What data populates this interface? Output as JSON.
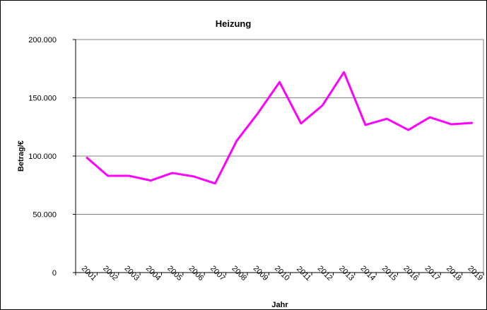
{
  "chart_data": {
    "type": "line",
    "title": "Heizung",
    "y_label": "Betrag/€",
    "x_label": "Jahr",
    "categories": [
      "2001",
      "2002",
      "2003",
      "2004",
      "2005",
      "2006",
      "2007",
      "2008",
      "2009",
      "2010",
      "2011",
      "2012",
      "2013",
      "2014",
      "2015",
      "2016",
      "2017",
      "2018",
      "2019"
    ],
    "series": [
      {
        "name": "Heizung",
        "color": "#ff00ff",
        "values": [
          99000,
          83000,
          83000,
          79000,
          85500,
          82500,
          76500,
          113000,
          137000,
          163500,
          128000,
          143500,
          172000,
          126700,
          132000,
          122400,
          133300,
          127300,
          128500
        ]
      }
    ],
    "ylim": [
      0,
      200000
    ],
    "yticks": [
      0,
      {
        "value": 50000,
        "label": "50.000"
      },
      {
        "value": 100000,
        "label": "100.000"
      },
      {
        "value": 150000,
        "label": "150.000"
      },
      {
        "value": 200000,
        "label": "200.000"
      }
    ],
    "grid": true
  }
}
